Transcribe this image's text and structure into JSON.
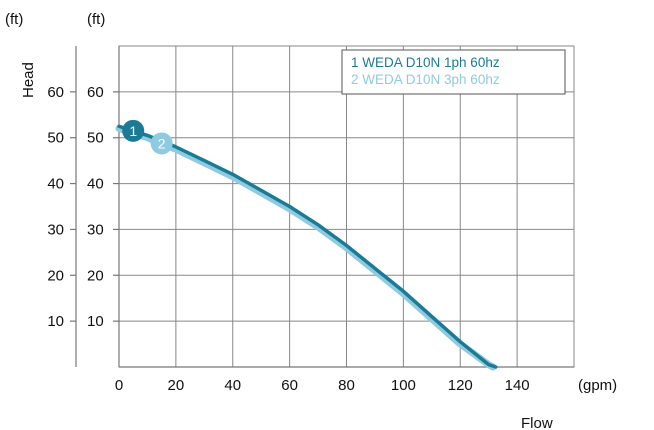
{
  "chart_data": {
    "type": "line",
    "xlabel": "Flow",
    "x_unit": "(gpm)",
    "ylabel": "Head",
    "y_unit_left": "(ft)",
    "y_unit_right": "(ft)",
    "xlim": [
      0,
      160
    ],
    "ylim": [
      0,
      70
    ],
    "x_ticks": [
      "0",
      "20",
      "40",
      "60",
      "80",
      "100",
      "120",
      "140"
    ],
    "y_ticks": [
      "10",
      "20",
      "30",
      "40",
      "50",
      "60"
    ],
    "grid": true,
    "legend_position": "top-right",
    "series": [
      {
        "name": "1 WEDA D10N 1ph 60hz",
        "marker_label": "1",
        "marker_x": 5,
        "color": "#1b7a96",
        "x": [
          0,
          10,
          20,
          30,
          40,
          50,
          60,
          70,
          80,
          90,
          100,
          110,
          120,
          130,
          132.5
        ],
        "y": [
          52.5,
          50.5,
          48,
          45,
          42,
          38.5,
          35,
          31,
          26.5,
          21.5,
          16.5,
          11,
          5.5,
          0.5,
          0
        ]
      },
      {
        "name": "2 WEDA D10N 3ph 60hz",
        "marker_label": "2",
        "marker_x": 15,
        "color": "#8fcbe0",
        "x": [
          0,
          10,
          20,
          30,
          40,
          50,
          60,
          70,
          80,
          90,
          100,
          110,
          120,
          130,
          131.5
        ],
        "y": [
          52,
          50,
          47.5,
          44.5,
          41.5,
          38,
          34.5,
          30.5,
          26,
          21,
          16,
          10.5,
          5,
          0.5,
          0
        ]
      }
    ]
  }
}
